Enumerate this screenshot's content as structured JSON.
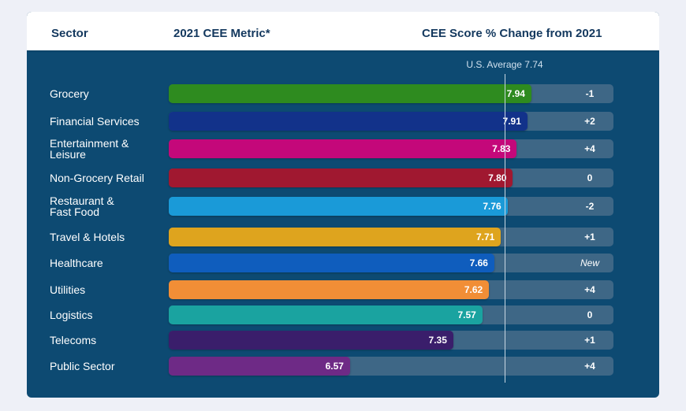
{
  "header": {
    "col_sector": "Sector",
    "col_metric": "2021 CEE Metric*",
    "col_change": "CEE Score % Change from 2021"
  },
  "average": {
    "label": "U.S. Average 7.74",
    "value": 7.74
  },
  "colors": {
    "background": "#0d4a72",
    "track": "#3e6786",
    "header": "#ffffff"
  },
  "chart_data": {
    "type": "bar",
    "orientation": "horizontal",
    "categories": [
      "Grocery",
      "Financial Services",
      "Entertainment &\nLeisure",
      "Non-Grocery Retail",
      "Restaurant &\nFast Food",
      "Travel & Hotels",
      "Healthcare",
      "Utilities",
      "Logistics",
      "Telecoms",
      "Public Sector"
    ],
    "values": [
      7.94,
      7.91,
      7.83,
      7.8,
      7.76,
      7.71,
      7.66,
      7.62,
      7.57,
      7.35,
      6.57
    ],
    "value_labels": [
      "7.94",
      "7.91",
      "7.83",
      "7.80",
      "7.76",
      "7.71",
      "7.66",
      "7.62",
      "7.57",
      "7.35",
      "6.57"
    ],
    "change": [
      "-1",
      "+2",
      "+4",
      "0",
      "-2",
      "+1",
      "New",
      "+4",
      "0",
      "+1",
      "+4"
    ],
    "bar_colors": [
      "#2e8b1f",
      "#12328a",
      "#c4087a",
      "#a01830",
      "#1a9ad8",
      "#dea41e",
      "#0f5dbd",
      "#f18e36",
      "#1aa3a0",
      "#3a1e6b",
      "#6e2a86"
    ],
    "reference_line": 7.74,
    "xlim": [
      5.2,
      8.56
    ]
  }
}
